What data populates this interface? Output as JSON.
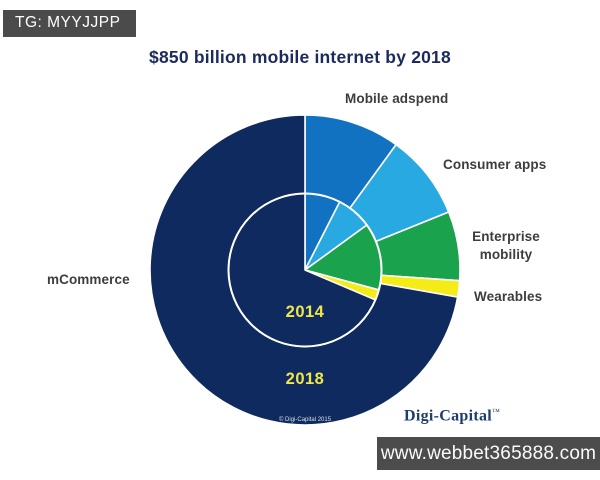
{
  "watermark_badge": {
    "text": "TG: MYYJJPP",
    "bg": "#4b4b4b",
    "color": "#ffffff"
  },
  "website_bar": {
    "text": "www.webbet365888.com",
    "bg": "#4c4c4c",
    "color": "#fafafa"
  },
  "logo": {
    "text": "Digi-Capital",
    "trademark": "™",
    "color": "#1d3d6e"
  },
  "footnote": {
    "text": "© Digi-Capital 2015"
  },
  "labels": {
    "mobile_adspend": "Mobile adspend",
    "consumer_apps": "Consumer apps",
    "enterprise_mobility": "Enterprise mobility",
    "wearables": "Wearables",
    "mcommerce": "mCommerce"
  },
  "chart_data": {
    "type": "pie",
    "title": "$850 billion mobile internet by 2018",
    "title_color": "#1c2b5e",
    "label_color": "#3d3d3d",
    "year_label_color": "#f0e74a",
    "total_market": "$850 billion",
    "start_angle_deg": 0,
    "direction": "clockwise",
    "legend_position": "labels-around-chart",
    "categories": [
      "Mobile adspend",
      "Consumer apps",
      "Enterprise mobility",
      "Wearables",
      "mCommerce"
    ],
    "rings": [
      {
        "year": "2018",
        "position": "outer",
        "segments": [
          {
            "label": "Mobile adspend",
            "percent": 10.0,
            "color": "#1172c2"
          },
          {
            "label": "Consumer apps",
            "percent": 8.9,
            "color": "#29a9e1"
          },
          {
            "label": "Enterprise mobility",
            "percent": 7.2,
            "color": "#1ba24c"
          },
          {
            "label": "Wearables",
            "percent": 1.7,
            "color": "#f4ec16"
          },
          {
            "label": "mCommerce",
            "percent": 72.2,
            "color": "#0f2a5e"
          }
        ]
      },
      {
        "year": "2014",
        "position": "inner",
        "segments": [
          {
            "label": "Mobile adspend",
            "percent": 7.5,
            "color": "#1172c2"
          },
          {
            "label": "Consumer apps",
            "percent": 7.5,
            "color": "#29a9e1"
          },
          {
            "label": "Enterprise mobility",
            "percent": 14.2,
            "color": "#1ba24c"
          },
          {
            "label": "Wearables",
            "percent": 2.2,
            "color": "#f4ec16"
          },
          {
            "label": "mCommerce",
            "percent": 68.6,
            "color": "#0f2a5e"
          }
        ]
      }
    ]
  }
}
